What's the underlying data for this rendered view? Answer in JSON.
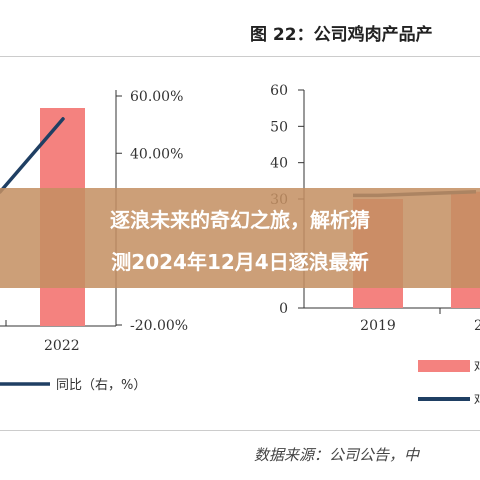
{
  "figure": {
    "title": "图 22：公司鸡肉产品产",
    "source": "数据来源：公司公告，中"
  },
  "overlay": {
    "line1": "逐浪未来的奇幻之旅，解析猜",
    "line2": "测2024年12月4日逐浪最新"
  },
  "chart_data": [
    {
      "type": "bar",
      "categories": [
        "2022"
      ],
      "series": [
        {
          "name": "",
          "values": [
            null
          ],
          "color": "#f4827f"
        },
        {
          "name": "同比（右，%）",
          "values": [
            52
          ],
          "color": "#1f3f63"
        }
      ],
      "right_axis": {
        "ticks": [
          "60.00%",
          "40.00%",
          "-20.00%"
        ],
        "ylim": [
          -20,
          60
        ]
      },
      "legend": {
        "position": "bottom-left"
      }
    },
    {
      "type": "bar",
      "categories": [
        "2019",
        "2"
      ],
      "series": [
        {
          "name": "鸡",
          "values": [
            30,
            32
          ],
          "color": "#f4827f"
        },
        {
          "name": "鸡",
          "values": [
            31,
            32
          ],
          "color": "#1f3f63"
        }
      ],
      "yticks": [
        "60",
        "50",
        "40",
        "30",
        "0"
      ],
      "ylim": [
        0,
        60
      ],
      "legend": {
        "position": "bottom-right"
      }
    }
  ]
}
